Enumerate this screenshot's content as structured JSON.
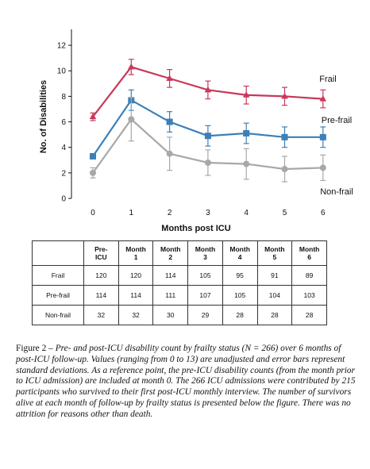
{
  "chart_data": {
    "type": "line",
    "title": "",
    "xlabel": "Months post ICU",
    "ylabel": "No. of Disabilities",
    "x": [
      0,
      1,
      2,
      3,
      4,
      5,
      6
    ],
    "x_tick_labels": [
      "0",
      "1",
      "2",
      "3",
      "4",
      "5",
      "6"
    ],
    "ylim": [
      0,
      13
    ],
    "y_ticks": [
      0,
      2,
      4,
      6,
      8,
      10,
      12
    ],
    "y_tick_labels": [
      "0",
      "2",
      "4",
      "6",
      "8",
      "10",
      "12"
    ],
    "grid": false,
    "legend": "labels next to lines (right side)",
    "series": [
      {
        "name": "Frail",
        "marker": "triangle",
        "color": "#c8385a",
        "values": [
          6.4,
          10.3,
          9.4,
          8.5,
          8.1,
          8.0,
          7.8
        ],
        "error": [
          0.3,
          0.6,
          0.7,
          0.7,
          0.7,
          0.7,
          0.7
        ]
      },
      {
        "name": "Pre-frail",
        "marker": "square",
        "color": "#3d7fb8",
        "values": [
          3.3,
          7.7,
          6.0,
          4.9,
          5.1,
          4.8,
          4.8
        ],
        "error": [
          0.2,
          0.8,
          0.8,
          0.8,
          0.8,
          0.8,
          0.8
        ]
      },
      {
        "name": "Non-frail",
        "marker": "circle",
        "color": "#a8a8a8",
        "values": [
          2.0,
          6.2,
          3.5,
          2.8,
          2.7,
          2.3,
          2.4
        ],
        "error": [
          0.4,
          1.7,
          1.3,
          1.0,
          1.2,
          1.0,
          1.0
        ]
      }
    ]
  },
  "table": {
    "header": [
      "Pre-\nICU",
      "Month\n1",
      "Month\n2",
      "Month\n3",
      "Month\n4",
      "Month\n5",
      "Month\n6"
    ],
    "rows": [
      {
        "label": "Frail",
        "values": [
          "120",
          "120",
          "114",
          "105",
          "95",
          "91",
          "89"
        ]
      },
      {
        "label": "Pre-frail",
        "values": [
          "114",
          "114",
          "111",
          "107",
          "105",
          "104",
          "103"
        ]
      },
      {
        "label": "Non-frail",
        "values": [
          "32",
          "32",
          "30",
          "29",
          "28",
          "28",
          "28"
        ]
      }
    ]
  },
  "caption": {
    "lead": "Figure 2 – ",
    "text": "Pre- and post-ICU disability count by frailty status (N = 266) over 6 months of post-ICU follow-up. Values (ranging from 0 to 13) are unadjusted and error bars represent standard deviations. As a reference point, the pre-ICU disability counts (from the month prior to ICU admission) are included at month 0. The 266 ICU admissions were contributed by 215 participants who survived to their first post-ICU monthly interview. The number of survivors alive at each month of follow-up by frailty status is presented below the figure. There was no attrition for reasons other than death."
  }
}
